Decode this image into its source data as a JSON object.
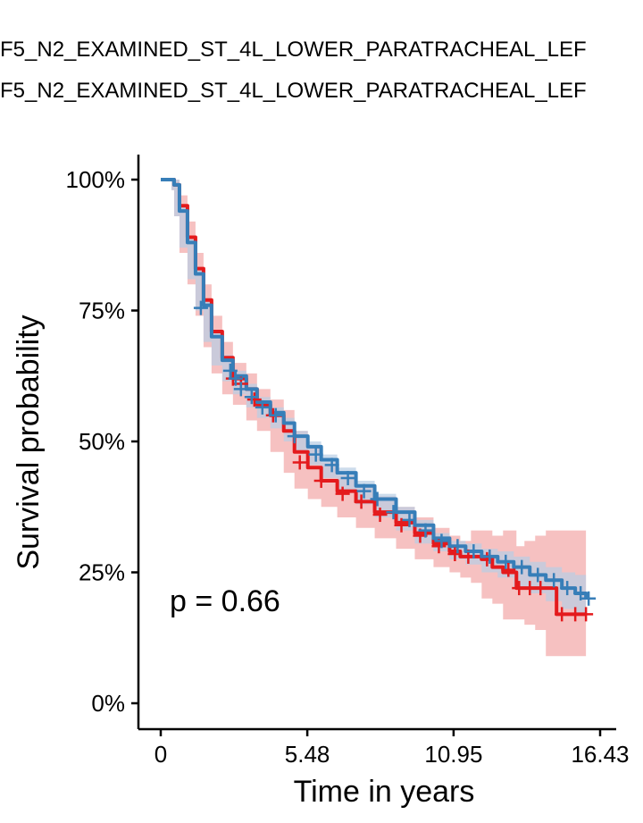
{
  "legend": {
    "line1": "F5_N2_EXAMINED_ST_4L_LOWER_PARATRACHEAL_LEF",
    "line2": "F5_N2_EXAMINED_ST_4L_LOWER_PARATRACHEAL_LEF"
  },
  "chart_data": {
    "type": "line",
    "xlabel": "Time in years",
    "ylabel": "Survival probability",
    "xlim": [
      0,
      16.43
    ],
    "ylim": [
      0,
      1
    ],
    "x_ticks": [
      0,
      5.48,
      10.95,
      16.43
    ],
    "x_tick_labels": [
      "0",
      "5.48",
      "10.95",
      "16.43"
    ],
    "y_ticks": [
      0,
      0.25,
      0.5,
      0.75,
      1.0
    ],
    "y_tick_labels": [
      "0%",
      "25%",
      "50%",
      "75%",
      "100%"
    ],
    "annotation": "p = 0.66",
    "colors": {
      "red": "#e41a1c",
      "blue": "#377eb8",
      "red_ci": "#f4b6b6",
      "blue_ci": "#b8cde4"
    },
    "series": [
      {
        "color": "#e41a1c",
        "x": [
          0,
          0.05,
          0.1,
          0.4,
          0.5,
          0.7,
          1.0,
          1.3,
          1.6,
          1.9,
          2.3,
          2.7,
          3.2,
          3.6,
          4.1,
          4.6,
          5.0,
          5.5,
          6.0,
          6.6,
          7.3,
          8.0,
          8.8,
          9.5,
          10.2,
          10.8,
          11.2,
          11.6,
          12.0,
          12.4,
          12.8,
          13.3,
          13.6,
          14.0,
          14.4,
          14.8,
          15.2,
          15.6,
          15.9
        ],
        "y": [
          1.0,
          1.0,
          1.0,
          1.0,
          0.99,
          0.95,
          0.89,
          0.83,
          0.77,
          0.71,
          0.66,
          0.62,
          0.6,
          0.57,
          0.55,
          0.52,
          0.48,
          0.45,
          0.425,
          0.405,
          0.385,
          0.365,
          0.345,
          0.325,
          0.305,
          0.29,
          0.28,
          0.28,
          0.275,
          0.26,
          0.25,
          0.22,
          0.22,
          0.22,
          0.22,
          0.17,
          0.17,
          0.17,
          0.17
        ],
        "ci_lower": [
          1.0,
          1.0,
          1.0,
          1.0,
          0.98,
          0.93,
          0.86,
          0.8,
          0.74,
          0.68,
          0.63,
          0.59,
          0.57,
          0.54,
          0.52,
          0.48,
          0.44,
          0.41,
          0.39,
          0.375,
          0.355,
          0.335,
          0.315,
          0.295,
          0.275,
          0.26,
          0.25,
          0.24,
          0.23,
          0.2,
          0.19,
          0.16,
          0.16,
          0.15,
          0.14,
          0.09,
          0.09,
          0.09,
          0.09
        ],
        "ci_upper": [
          1.0,
          1.0,
          1.0,
          1.0,
          1.0,
          0.97,
          0.92,
          0.86,
          0.8,
          0.74,
          0.69,
          0.65,
          0.63,
          0.6,
          0.58,
          0.56,
          0.52,
          0.49,
          0.46,
          0.435,
          0.415,
          0.395,
          0.375,
          0.355,
          0.335,
          0.32,
          0.31,
          0.33,
          0.33,
          0.32,
          0.33,
          0.3,
          0.31,
          0.32,
          0.33,
          0.33,
          0.33,
          0.33,
          0.33
        ],
        "censored_x": [
          2.7,
          3.0,
          3.5,
          4.2,
          5.2,
          6.0,
          6.8,
          7.5,
          8.2,
          9.0,
          9.7,
          10.4,
          11.0,
          11.5,
          12.2,
          13.0,
          13.4,
          13.8,
          14.2,
          15.0,
          15.5,
          15.9
        ],
        "censored_y": [
          0.62,
          0.61,
          0.58,
          0.55,
          0.46,
          0.425,
          0.4,
          0.385,
          0.36,
          0.34,
          0.32,
          0.3,
          0.285,
          0.28,
          0.275,
          0.255,
          0.22,
          0.22,
          0.22,
          0.17,
          0.17,
          0.17
        ]
      },
      {
        "color": "#377eb8",
        "x": [
          0,
          0.05,
          0.1,
          0.4,
          0.5,
          0.7,
          1.0,
          1.3,
          1.6,
          1.9,
          2.3,
          2.7,
          3.2,
          3.6,
          4.1,
          4.6,
          5.0,
          5.5,
          6.0,
          6.6,
          7.3,
          8.0,
          8.8,
          9.5,
          10.2,
          10.8,
          11.4,
          12.0,
          12.6,
          13.2,
          13.8,
          14.4,
          15.0,
          15.5,
          15.9
        ],
        "y": [
          1.0,
          1.0,
          1.0,
          1.0,
          0.99,
          0.94,
          0.88,
          0.82,
          0.76,
          0.7,
          0.655,
          0.625,
          0.6,
          0.575,
          0.555,
          0.535,
          0.51,
          0.49,
          0.465,
          0.44,
          0.415,
          0.39,
          0.365,
          0.34,
          0.315,
          0.3,
          0.29,
          0.28,
          0.27,
          0.26,
          0.245,
          0.235,
          0.22,
          0.21,
          0.2
        ],
        "ci_lower": [
          1.0,
          1.0,
          1.0,
          1.0,
          0.98,
          0.93,
          0.87,
          0.81,
          0.75,
          0.69,
          0.645,
          0.615,
          0.59,
          0.565,
          0.545,
          0.525,
          0.5,
          0.48,
          0.455,
          0.43,
          0.405,
          0.38,
          0.355,
          0.33,
          0.305,
          0.29,
          0.275,
          0.265,
          0.25,
          0.24,
          0.22,
          0.21,
          0.195,
          0.18,
          0.17
        ],
        "ci_upper": [
          1.0,
          1.0,
          1.0,
          1.0,
          1.0,
          0.95,
          0.89,
          0.83,
          0.77,
          0.71,
          0.665,
          0.635,
          0.61,
          0.585,
          0.565,
          0.545,
          0.52,
          0.5,
          0.475,
          0.45,
          0.425,
          0.4,
          0.375,
          0.35,
          0.325,
          0.31,
          0.305,
          0.295,
          0.29,
          0.28,
          0.27,
          0.26,
          0.25,
          0.245,
          0.24
        ],
        "censored_x": [
          1.5,
          2.6,
          2.8,
          3.0,
          3.4,
          3.8,
          4.3,
          5.0,
          5.8,
          6.4,
          7.0,
          7.6,
          8.1,
          8.7,
          9.3,
          9.9,
          10.5,
          11.1,
          11.7,
          12.3,
          12.9,
          13.5,
          14.1,
          14.7,
          15.2,
          15.7,
          16.0
        ],
        "censored_y": [
          0.755,
          0.635,
          0.62,
          0.6,
          0.585,
          0.565,
          0.55,
          0.51,
          0.475,
          0.455,
          0.43,
          0.405,
          0.39,
          0.365,
          0.35,
          0.33,
          0.31,
          0.3,
          0.29,
          0.28,
          0.27,
          0.26,
          0.245,
          0.235,
          0.22,
          0.21,
          0.2
        ]
      }
    ]
  }
}
